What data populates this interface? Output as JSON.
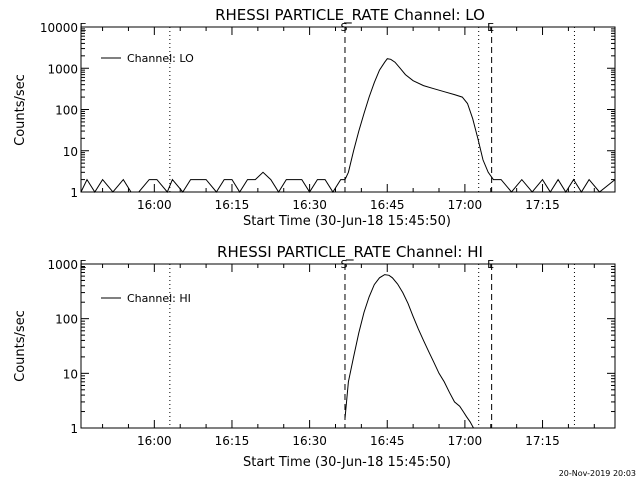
{
  "footer": {
    "timestamp": "20-Nov-2019 20:03"
  },
  "chart_data": [
    {
      "type": "line",
      "title": "RHESSI PARTICLE_RATE Channel: LO",
      "xlabel": "Start Time (30-Jun-18 15:45:50)",
      "ylabel": "Counts/sec",
      "y_scale": "log",
      "xlim": [
        "15:45:50",
        "17:29:00"
      ],
      "ylim": [
        1,
        10000
      ],
      "x_ticks": [
        "16:00",
        "16:15",
        "16:30",
        "16:45",
        "17:00",
        "17:15"
      ],
      "y_ticks": [
        "1",
        "10",
        "100",
        "1000",
        "10000"
      ],
      "legend": {
        "position": "top-left",
        "entries": [
          "Channel: LO"
        ]
      },
      "vlines": [
        {
          "x": "16:03:00",
          "style": "dotted",
          "label": ""
        },
        {
          "x": "16:36:50",
          "style": "dashed",
          "label": "S"
        },
        {
          "x": "17:02:40",
          "style": "dotted",
          "label": ""
        },
        {
          "x": "17:05:10",
          "style": "dashed",
          "label": "E"
        },
        {
          "x": "17:21:10",
          "style": "dotted",
          "label": ""
        }
      ],
      "corner_label": "E",
      "series": [
        {
          "name": "Channel: LO",
          "x": [
            "15:45:50",
            "15:47:00",
            "15:48:30",
            "15:50:00",
            "15:52:00",
            "15:54:00",
            "15:55:30",
            "15:57:00",
            "15:59:00",
            "16:00:30",
            "16:02:30",
            "16:03:30",
            "16:05:30",
            "16:07:00",
            "16:08:30",
            "16:10:00",
            "16:12:00",
            "16:13:30",
            "16:15:00",
            "16:16:30",
            "16:18:00",
            "16:19:30",
            "16:21:00",
            "16:22:30",
            "16:24:00",
            "16:25:30",
            "16:27:00",
            "16:28:30",
            "16:30:00",
            "16:31:30",
            "16:33:00",
            "16:34:30",
            "16:36:00",
            "16:36:50",
            "16:37:30",
            "16:38:30",
            "16:39:30",
            "16:40:30",
            "16:41:30",
            "16:42:30",
            "16:43:30",
            "16:44:30",
            "16:45:00",
            "16:45:40",
            "16:46:30",
            "16:47:30",
            "16:48:30",
            "16:50:00",
            "16:52:00",
            "16:54:00",
            "16:56:00",
            "16:58:00",
            "16:59:30",
            "17:00:30",
            "17:01:30",
            "17:02:30",
            "17:03:30",
            "17:04:30",
            "17:05:30",
            "17:07:00",
            "17:09:00",
            "17:11:00",
            "17:13:00",
            "17:15:00",
            "17:16:30",
            "17:18:00",
            "17:19:30",
            "17:21:00",
            "17:22:30",
            "17:24:00",
            "17:26:00",
            "17:29:00"
          ],
          "values": [
            1,
            2,
            1,
            2,
            1,
            2,
            1,
            1,
            2,
            2,
            1,
            2,
            1,
            2,
            2,
            2,
            1,
            2,
            2,
            1,
            2,
            2,
            3,
            2,
            1,
            2,
            2,
            2,
            1,
            2,
            2,
            1,
            2,
            2,
            3,
            10,
            30,
            80,
            200,
            450,
            900,
            1400,
            1700,
            1650,
            1400,
            1000,
            700,
            500,
            380,
            320,
            270,
            230,
            200,
            140,
            60,
            20,
            6,
            3,
            2,
            2,
            1,
            2,
            1,
            2,
            1,
            2,
            1,
            2,
            1,
            2,
            1,
            2
          ]
        }
      ]
    },
    {
      "type": "line",
      "title": "RHESSI PARTICLE_RATE Channel: HI",
      "xlabel": "Start Time (30-Jun-18 15:45:50)",
      "ylabel": "Counts/sec",
      "y_scale": "log",
      "xlim": [
        "15:45:50",
        "17:29:00"
      ],
      "ylim": [
        1,
        1000
      ],
      "x_ticks": [
        "16:00",
        "16:15",
        "16:30",
        "16:45",
        "17:00",
        "17:15"
      ],
      "y_ticks": [
        "1",
        "10",
        "100",
        "1000"
      ],
      "legend": {
        "position": "top-left",
        "entries": [
          "Channel: HI"
        ]
      },
      "vlines": [
        {
          "x": "16:03:00",
          "style": "dotted",
          "label": ""
        },
        {
          "x": "16:36:50",
          "style": "dashed",
          "label": "S"
        },
        {
          "x": "17:02:40",
          "style": "dotted",
          "label": ""
        },
        {
          "x": "17:05:10",
          "style": "dashed",
          "label": "E"
        },
        {
          "x": "17:21:10",
          "style": "dotted",
          "label": ""
        }
      ],
      "corner_label": "E",
      "series": [
        {
          "name": "Channel: HI",
          "x": [
            "16:36:50",
            "16:37:30",
            "16:38:30",
            "16:39:30",
            "16:40:30",
            "16:41:30",
            "16:42:30",
            "16:43:30",
            "16:44:30",
            "16:45:20",
            "16:46:00",
            "16:47:00",
            "16:48:00",
            "16:49:00",
            "16:50:00",
            "16:51:00",
            "16:52:00",
            "16:53:00",
            "16:54:00",
            "16:55:00",
            "16:56:00",
            "16:57:00",
            "16:58:00",
            "16:59:00",
            "16:59:40",
            "17:00:20",
            "17:01:00",
            "17:01:40"
          ],
          "values": [
            1.5,
            7,
            20,
            55,
            130,
            250,
            420,
            560,
            640,
            620,
            560,
            430,
            300,
            190,
            110,
            65,
            40,
            25,
            16,
            10,
            7,
            4.5,
            3,
            2.5,
            2,
            1.6,
            1.3,
            1
          ]
        }
      ]
    }
  ]
}
